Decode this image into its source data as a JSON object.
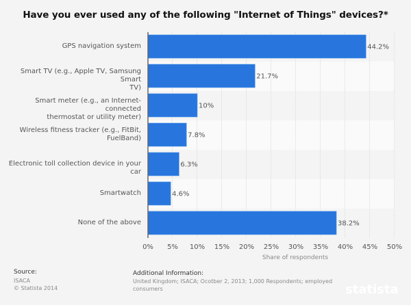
{
  "chart_data": {
    "type": "bar",
    "orientation": "horizontal",
    "title": "Have you ever used any of the following \"Internet of Things\" devices?*",
    "categories": [
      "GPS navigation system",
      "Smart TV (e.g., Apple TV, Samsung Smart TV)",
      "Smart meter (e.g., an Internet-connected thermostat or utility meter)",
      "Wireless fitness tracker (e.g., FitBit, FuelBand)",
      "Electronic toll collection device in your car",
      "Smartwatch",
      "None of the above"
    ],
    "category_lines": [
      [
        "GPS navigation system"
      ],
      [
        "Smart TV (e.g., Apple TV, Samsung Smart",
        "TV)"
      ],
      [
        "Smart meter (e.g., an Internet-connected",
        "thermostat or utility meter)"
      ],
      [
        "Wireless fitness tracker (e.g., FitBit,",
        "FuelBand)"
      ],
      [
        "Electronic toll collection device in your car"
      ],
      [
        "Smartwatch"
      ],
      [
        "None of the above"
      ]
    ],
    "values": [
      44.2,
      21.7,
      10,
      7.8,
      6.3,
      4.6,
      38.2
    ],
    "value_labels": [
      "44.2%",
      "21.7%",
      "10%",
      "7.8%",
      "6.3%",
      "4.6%",
      "38.2%"
    ],
    "xlabel": "Share of respondents",
    "ylabel": "",
    "xlim": [
      0,
      50
    ],
    "xticks": [
      0,
      5,
      10,
      15,
      20,
      25,
      30,
      35,
      40,
      45,
      50
    ],
    "xtick_labels": [
      "0%",
      "5%",
      "10%",
      "15%",
      "20%",
      "25%",
      "30%",
      "35%",
      "40%",
      "45%",
      "50%"
    ],
    "grid": true,
    "legend": "none",
    "bar_color": "#2876dd"
  },
  "footer": {
    "source_heading": "Source:",
    "source_lines": [
      "ISACA",
      "© Statista 2014"
    ],
    "info_heading": "Additional Information:",
    "info_lines": [
      "United Kingdom; ISACA; Ocotber 2, 2013; 1,000 Respondents; employed",
      "consumers"
    ]
  },
  "brand": {
    "name": "statista",
    "logo_icon": "statista-logo-icon",
    "dark_color": "#002742",
    "accent_color": "#2876dd"
  }
}
